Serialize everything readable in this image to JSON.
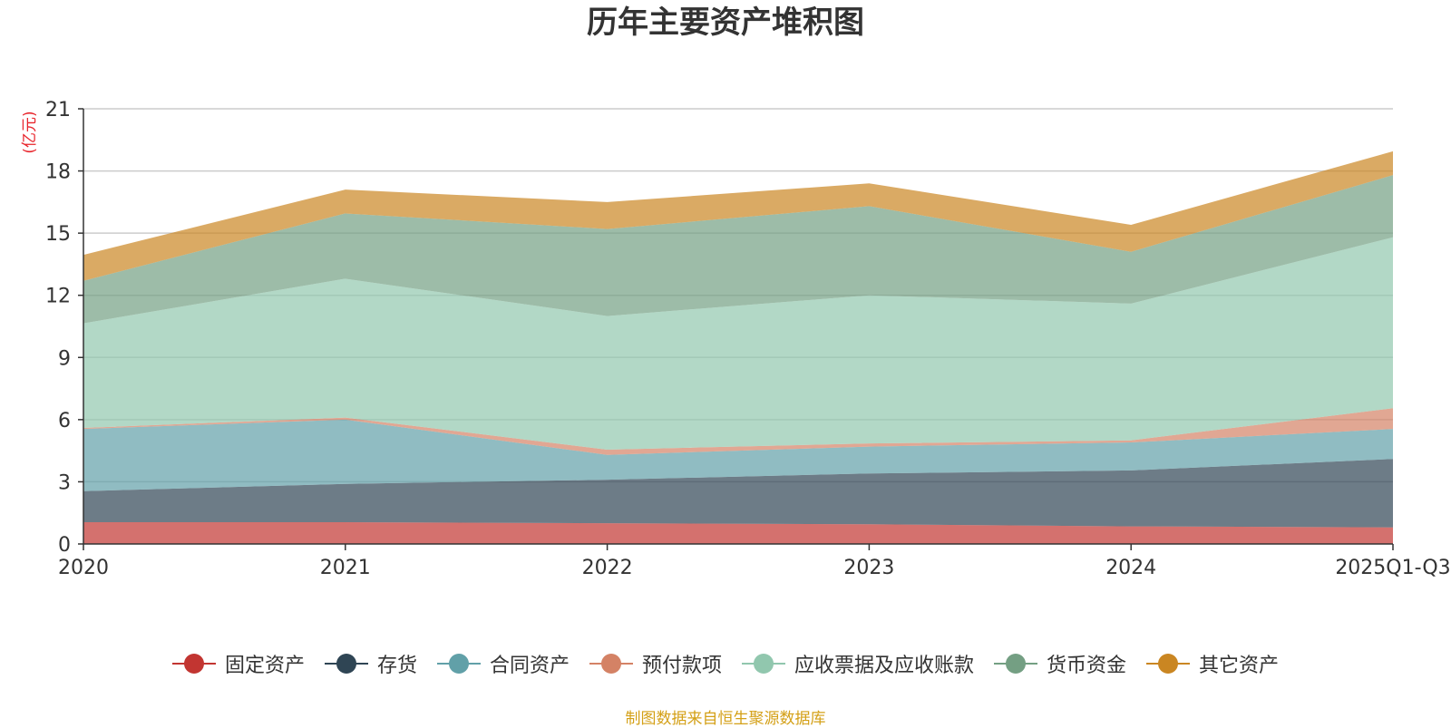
{
  "chart_data": {
    "type": "area",
    "stacked": true,
    "title": "历年主要资产堆积图",
    "ylabel": "(亿元)",
    "xlabel": "",
    "ylim": [
      0,
      21
    ],
    "yticks": [
      0,
      3,
      6,
      9,
      12,
      15,
      18,
      21
    ],
    "categories": [
      "2020",
      "2021",
      "2022",
      "2023",
      "2024",
      "2025Q1-Q3"
    ],
    "series": [
      {
        "name": "固定资产",
        "color": "#c23531",
        "values": [
          1.05,
          1.05,
          1.0,
          0.95,
          0.85,
          0.8
        ]
      },
      {
        "name": "存货",
        "color": "#2f4554",
        "values": [
          1.5,
          1.85,
          2.1,
          2.45,
          2.7,
          3.3
        ]
      },
      {
        "name": "合同资产",
        "color": "#61a0a8",
        "values": [
          3.0,
          3.1,
          1.2,
          1.3,
          1.35,
          1.45
        ]
      },
      {
        "name": "预付款项",
        "color": "#d48265",
        "values": [
          0.05,
          0.1,
          0.25,
          0.15,
          0.1,
          1.0
        ]
      },
      {
        "name": "应收票据及应收账款",
        "color": "#91c7ae",
        "values": [
          5.05,
          6.7,
          6.45,
          7.15,
          6.6,
          8.25
        ]
      },
      {
        "name": "货币资金",
        "color": "#749f83",
        "values": [
          2.05,
          3.15,
          4.2,
          4.3,
          2.5,
          3.0
        ]
      },
      {
        "name": "其它资产",
        "color": "#ca8622",
        "values": [
          1.25,
          1.15,
          1.3,
          1.1,
          1.3,
          1.15
        ]
      }
    ],
    "legend_position": "bottom-center",
    "grid": true
  },
  "footer": {
    "source": "制图数据来自恒生聚源数据库"
  }
}
